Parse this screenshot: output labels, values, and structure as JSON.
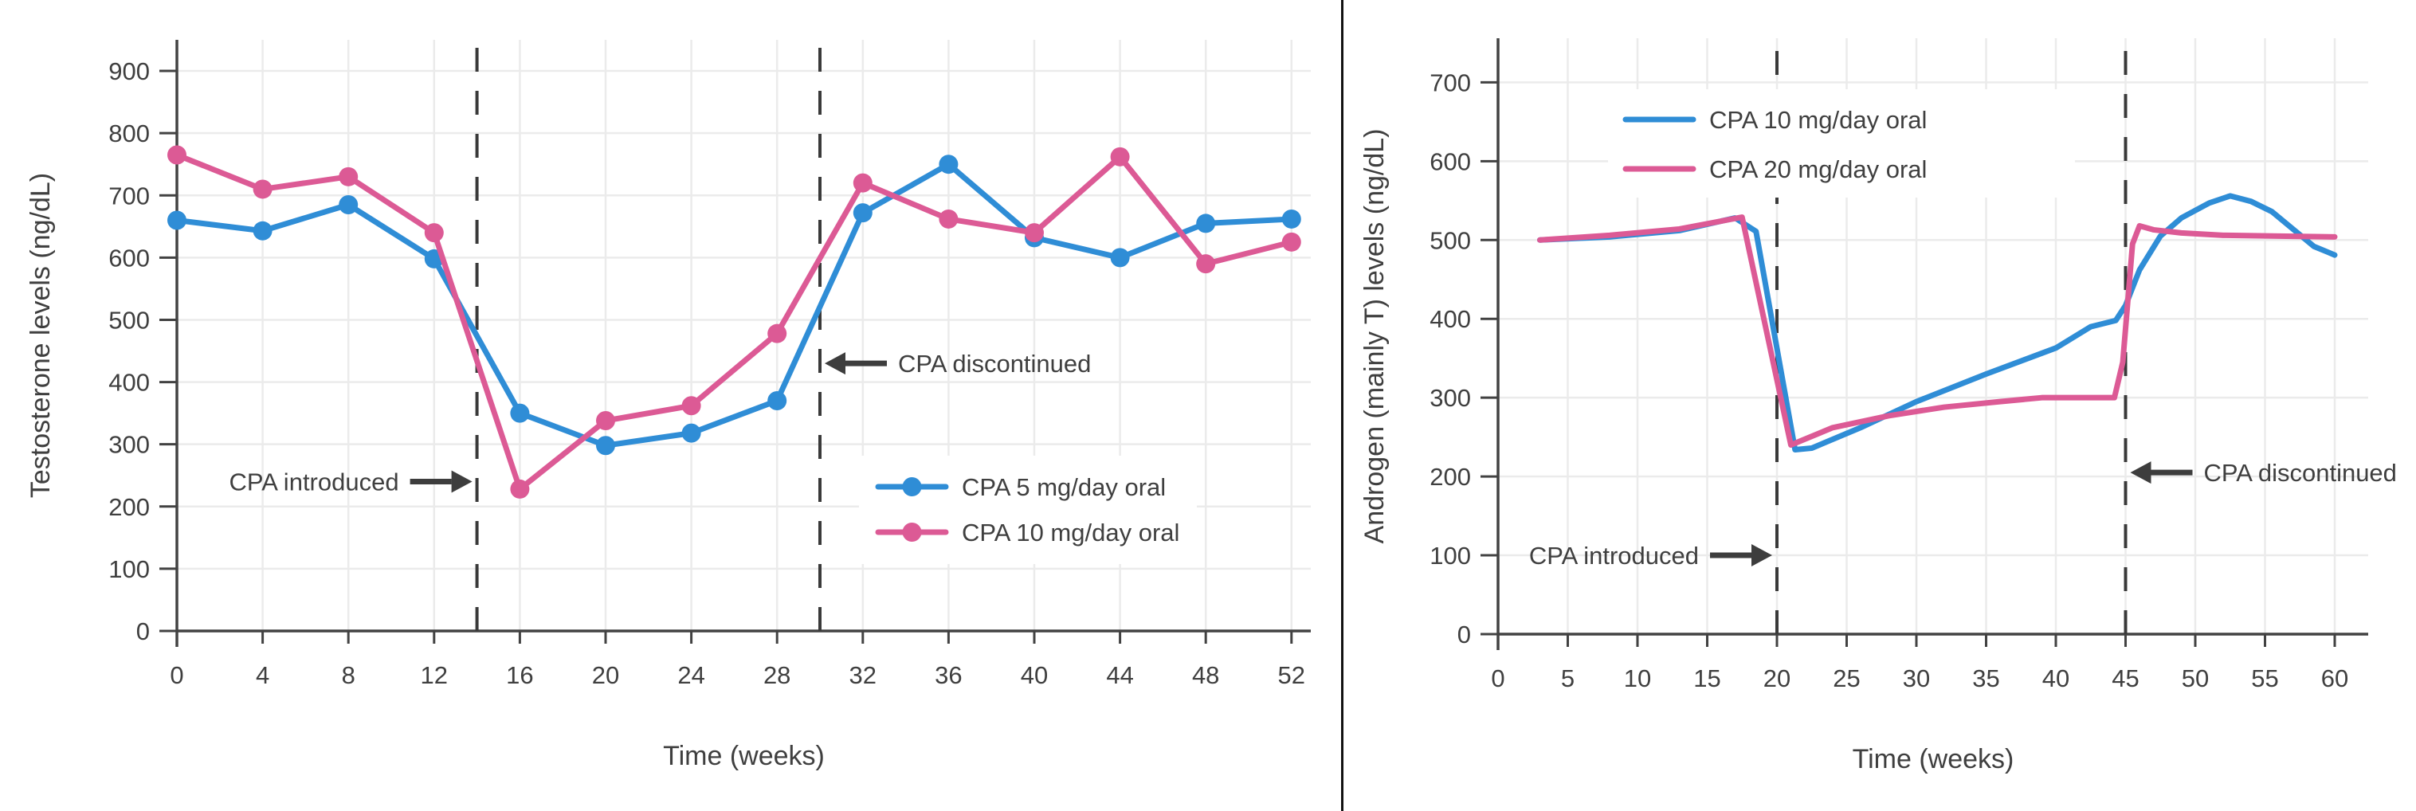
{
  "page": {
    "background": "#ffffff",
    "divider_color": "#111111",
    "text_color": "#3f3f3f",
    "grid_color": "#ebebeb",
    "axis_color": "#424242",
    "dash_color": "#3a3a3a",
    "arrow_color": "#3d3d3d"
  },
  "chart_data": [
    {
      "id": "testosterone-chart",
      "type": "line",
      "title": "",
      "xlabel": "Time (weeks)",
      "ylabel": "Testosterone levels (ng/dL)",
      "x_ticks": [
        0,
        4,
        8,
        12,
        16,
        20,
        24,
        28,
        32,
        36,
        40,
        44,
        48,
        52
      ],
      "y_ticks": [
        0,
        100,
        200,
        300,
        400,
        500,
        600,
        700,
        800,
        900
      ],
      "xlim": [
        0,
        52.9
      ],
      "ylim": [
        0,
        950
      ],
      "grid": true,
      "legend_position": "inside-lower-right",
      "markers": true,
      "categories": [
        0,
        4,
        8,
        12,
        16,
        20,
        24,
        28,
        32,
        36,
        40,
        44,
        48,
        52
      ],
      "series": [
        {
          "name": "CPA 5 mg/day oral",
          "color": "#2F8DD6",
          "x": [
            0,
            4,
            8,
            12,
            16,
            20,
            24,
            28,
            32,
            36,
            40,
            44,
            48,
            52
          ],
          "values": [
            660,
            643,
            685,
            598,
            350,
            298,
            318,
            370,
            672,
            750,
            632,
            600,
            655,
            662
          ]
        },
        {
          "name": "CPA 10 mg/day oral",
          "color": "#DC5A95",
          "x": [
            0,
            4,
            8,
            12,
            16,
            20,
            24,
            28,
            32,
            36,
            40,
            44,
            48,
            52
          ],
          "values": [
            765,
            710,
            730,
            640,
            228,
            338,
            362,
            478,
            720,
            662,
            640,
            762,
            590,
            625
          ]
        }
      ],
      "vlines": [
        {
          "x": 14,
          "label": "CPA introduced",
          "side": "left",
          "label_value": 240
        },
        {
          "x": 30,
          "label": "CPA discontinued",
          "side": "right",
          "label_value": 430
        }
      ]
    },
    {
      "id": "androgen-chart",
      "type": "line",
      "title": "",
      "xlabel": "Time (weeks)",
      "ylabel": "Androgen (mainly T) levels (ng/dL)",
      "x_ticks": [
        0,
        5,
        10,
        15,
        20,
        25,
        30,
        35,
        40,
        45,
        50,
        55,
        60
      ],
      "y_ticks": [
        0,
        100,
        200,
        300,
        400,
        500,
        600,
        700
      ],
      "xlim": [
        0,
        62.4
      ],
      "ylim": [
        0,
        756
      ],
      "grid": true,
      "legend_position": "inside-upper-center",
      "markers": false,
      "series": [
        {
          "name": "CPA 10 mg/day oral",
          "color": "#2F8DD6",
          "x": [
            3,
            8,
            13,
            17,
            18.5,
            21.3,
            22.5,
            26,
            30,
            35,
            40,
            42.5,
            44.3,
            45,
            46,
            47.5,
            49,
            51,
            52.5,
            54,
            55.5,
            57,
            58.5,
            60
          ],
          "values": [
            500,
            504,
            512,
            528,
            511,
            234,
            236,
            262,
            295,
            330,
            363,
            390,
            398,
            417,
            462,
            505,
            528,
            547,
            556,
            549,
            536,
            514,
            492,
            481
          ]
        },
        {
          "name": "CPA 20 mg/day oral",
          "color": "#DC5A95",
          "x": [
            3,
            8,
            13,
            17.5,
            21,
            24,
            28,
            32,
            36,
            39,
            44.2,
            44.8,
            45.5,
            46,
            47,
            49,
            52,
            56,
            60
          ],
          "values": [
            500,
            506,
            514,
            529,
            240,
            262,
            277,
            288,
            295,
            300,
            300,
            345,
            495,
            518,
            513,
            509,
            506,
            505,
            504
          ]
        }
      ],
      "vlines": [
        {
          "x": 20,
          "label": "CPA introduced",
          "side": "left",
          "label_value": 100
        },
        {
          "x": 45,
          "label": "CPA discontinued",
          "side": "right",
          "label_value": 205
        }
      ]
    }
  ]
}
